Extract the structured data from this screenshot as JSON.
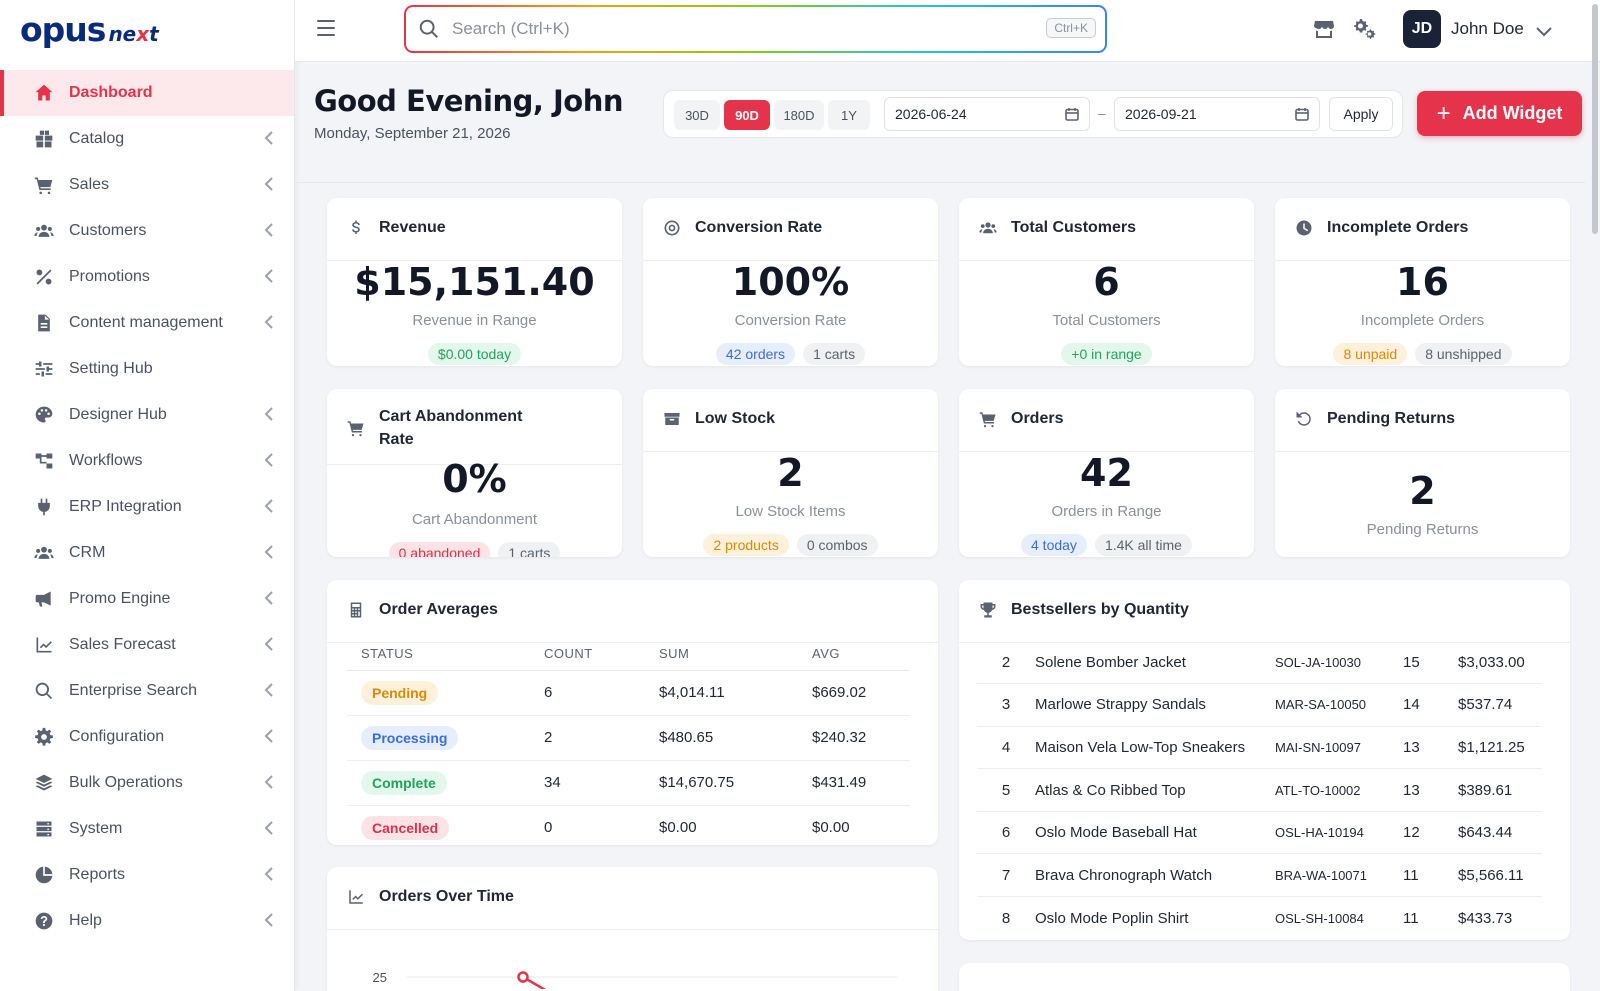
{
  "brand": {
    "primary": "opus",
    "secondary_a": "ne",
    "secondary_x": "x",
    "secondary_b": "t",
    "accent": "#e5334b",
    "navy": "#0b2b7a"
  },
  "sidebar": {
    "items": [
      {
        "label": "Dashboard",
        "icon": "home-icon",
        "active": true
      },
      {
        "label": "Catalog",
        "icon": "boxes-icon"
      },
      {
        "label": "Sales",
        "icon": "cart-icon"
      },
      {
        "label": "Customers",
        "icon": "users-icon"
      },
      {
        "label": "Promotions",
        "icon": "percent-icon"
      },
      {
        "label": "Content management",
        "icon": "file-icon"
      },
      {
        "label": "Setting Hub",
        "icon": "sliders-icon"
      },
      {
        "label": "Designer Hub",
        "icon": "palette-icon"
      },
      {
        "label": "Workflows",
        "icon": "workflow-icon"
      },
      {
        "label": "ERP Integration",
        "icon": "plug-icon"
      },
      {
        "label": "CRM",
        "icon": "users-icon"
      },
      {
        "label": "Promo Engine",
        "icon": "megaphone-icon"
      },
      {
        "label": "Sales Forecast",
        "icon": "line-chart-icon"
      },
      {
        "label": "Enterprise Search",
        "icon": "search-icon"
      },
      {
        "label": "Configuration",
        "icon": "gear-icon"
      },
      {
        "label": "Bulk Operations",
        "icon": "layers-icon"
      },
      {
        "label": "System",
        "icon": "server-icon"
      },
      {
        "label": "Reports",
        "icon": "pie-chart-icon"
      },
      {
        "label": "Help",
        "icon": "question-icon"
      }
    ]
  },
  "topbar": {
    "search_placeholder": "Search (Ctrl+K)",
    "search_shortcut": "Ctrl+K",
    "user_initials": "JD",
    "user_name": "John Doe"
  },
  "header": {
    "greeting": "Good Evening, John",
    "date": "Monday, September 21, 2026",
    "ranges": [
      "30D",
      "90D",
      "180D",
      "1Y"
    ],
    "active_range": "90D",
    "date_from": "2026-06-24",
    "date_sep": "–",
    "date_to": "2026-09-21",
    "apply_label": "Apply",
    "add_widget_label": "Add Widget"
  },
  "kpis": {
    "revenue": {
      "title": "Revenue",
      "value": "$15,151.40",
      "sub": "Revenue in Range",
      "pills": [
        "$0.00 today"
      ]
    },
    "conversion": {
      "title": "Conversion Rate",
      "value": "100%",
      "sub": "Conversion Rate",
      "pills": [
        "42 orders",
        "1 carts"
      ]
    },
    "customers": {
      "title": "Total Customers",
      "value": "6",
      "sub": "Total Customers",
      "pills": [
        "+0 in range"
      ]
    },
    "incomplete": {
      "title": "Incomplete Orders",
      "value": "16",
      "sub": "Incomplete Orders",
      "pills": [
        "8 unpaid",
        "8 unshipped"
      ]
    },
    "abandonment": {
      "title": "Cart Abandonment Rate",
      "value": "0%",
      "sub": "Cart Abandonment",
      "pills": [
        "0 abandoned",
        "1 carts"
      ]
    },
    "lowstock": {
      "title": "Low Stock",
      "value": "2",
      "sub": "Low Stock Items",
      "pills": [
        "2 products",
        "0 combos"
      ]
    },
    "orders": {
      "title": "Orders",
      "value": "42",
      "sub": "Orders in Range",
      "pills": [
        "4 today",
        "1.4K all time"
      ]
    },
    "returns": {
      "title": "Pending Returns",
      "value": "2",
      "sub": "Pending Returns"
    }
  },
  "order_averages": {
    "title": "Order Averages",
    "columns": [
      "STATUS",
      "COUNT",
      "SUM",
      "AVG"
    ],
    "rows": [
      {
        "status": "Pending",
        "count": "6",
        "sum": "$4,014.11",
        "avg": "$669.02"
      },
      {
        "status": "Processing",
        "count": "2",
        "sum": "$480.65",
        "avg": "$240.32"
      },
      {
        "status": "Complete",
        "count": "34",
        "sum": "$14,670.75",
        "avg": "$431.49"
      },
      {
        "status": "Cancelled",
        "count": "0",
        "sum": "$0.00",
        "avg": "$0.00"
      }
    ]
  },
  "bestsellers": {
    "title": "Bestsellers by Quantity",
    "rows": [
      {
        "rank": "2",
        "name": "Solene Bomber Jacket",
        "sku": "SOL-JA-10030",
        "qty": "15",
        "amount": "$3,033.00"
      },
      {
        "rank": "3",
        "name": "Marlowe Strappy Sandals",
        "sku": "MAR-SA-10050",
        "qty": "14",
        "amount": "$537.74"
      },
      {
        "rank": "4",
        "name": "Maison Vela Low-Top Sneakers",
        "sku": "MAI-SN-10097",
        "qty": "13",
        "amount": "$1,121.25"
      },
      {
        "rank": "5",
        "name": "Atlas & Co Ribbed Top",
        "sku": "ATL-TO-10002",
        "qty": "13",
        "amount": "$389.61"
      },
      {
        "rank": "6",
        "name": "Oslo Mode Baseball Hat",
        "sku": "OSL-HA-10194",
        "qty": "12",
        "amount": "$643.44"
      },
      {
        "rank": "7",
        "name": "Brava Chronograph Watch",
        "sku": "BRA-WA-10071",
        "qty": "11",
        "amount": "$5,566.11"
      },
      {
        "rank": "8",
        "name": "Oslo Mode Poplin Shirt",
        "sku": "OSL-SH-10084",
        "qty": "11",
        "amount": "$433.73"
      }
    ]
  },
  "orders_over_time": {
    "title": "Orders Over Time"
  },
  "chart_data": {
    "type": "line",
    "title": "Orders Over Time",
    "y_tick_labels": [
      "25"
    ],
    "visible_point": {
      "y": 25
    },
    "line_color": "#e5334b"
  }
}
